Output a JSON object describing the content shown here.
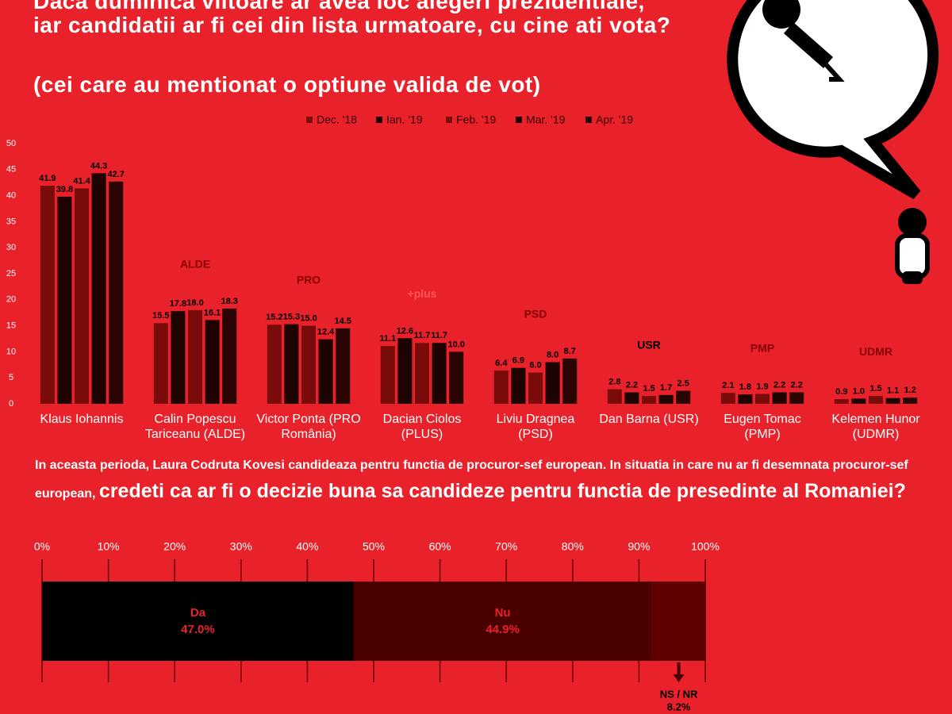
{
  "chart_data": [
    {
      "type": "bar",
      "title": [
        "Daca duminica viitoare ar avea loc alegeri prezidentiale,",
        "iar candidatii ar fi cei din lista urmatoare, cu cine ati vota?"
      ],
      "subtitle": "(cei care au mentionat o optiune valida de vot)",
      "categories": [
        "Klaus Iohannis",
        "Calin Popescu Tariceanu (ALDE)",
        "Victor Ponta (PRO România)",
        "Dacian Ciolos (PLUS)",
        "Liviu Dragnea (PSD)",
        "Dan Barna (USR)",
        "Eugen Tomac (PMP)",
        "Kelemen Hunor (UDMR)"
      ],
      "logos": [
        "ALDE",
        "PRO",
        "+plus",
        "PSD",
        "USR",
        "PMP",
        "UDMR"
      ],
      "series": [
        {
          "name": "Dec. '18",
          "color": "#7a0b0b",
          "values": [
            41.9,
            15.5,
            15.2,
            11.1,
            6.4,
            2.8,
            2.1,
            0.9
          ],
          "value_labels": [
            "41.9",
            "15.5",
            "15.2",
            "11.1",
            "6.4",
            "2.8",
            "2.1",
            "0.9"
          ]
        },
        {
          "name": "Ian. '19",
          "color": "#1e0303",
          "values": [
            39.8,
            17.8,
            15.3,
            12.6,
            6.9,
            2.2,
            1.8,
            1.0
          ],
          "value_labels": [
            "39.8",
            "17.8",
            "15.3",
            "12.6",
            "6.9",
            "2.2",
            "1.8",
            "1.0"
          ]
        },
        {
          "name": "Feb. '19",
          "color": "#7a0b0b",
          "values": [
            41.4,
            18.0,
            15.0,
            11.7,
            6.0,
            1.5,
            1.9,
            1.5
          ],
          "value_labels": [
            "41.4",
            "18.0",
            "15.0",
            "11.7",
            "6.0",
            "1.5",
            "1.9",
            "1.5"
          ]
        },
        {
          "name": "Mar. '19",
          "color": "#1e0303",
          "values": [
            44.3,
            16.1,
            12.4,
            11.7,
            8.0,
            1.7,
            2.2,
            1.1
          ],
          "value_labels": [
            "44.3",
            "16.1",
            "12.4",
            "11.7",
            "8.0",
            "1.7",
            "2.2",
            "1.1"
          ]
        },
        {
          "name": "Apr. '19",
          "color": "#2a0303",
          "values": [
            42.7,
            18.3,
            14.5,
            10.0,
            8.7,
            2.5,
            2.2,
            1.2
          ],
          "value_labels": [
            "42.7",
            "18.3",
            "14.5",
            "10.0",
            "8.7",
            "2.5",
            "2.2",
            "1.2"
          ]
        }
      ],
      "ylim": [
        0,
        50
      ],
      "yticks": [
        0,
        5,
        10,
        15,
        20,
        25,
        30,
        35,
        40,
        45,
        50
      ],
      "legend": "top"
    },
    {
      "type": "stacked-bar",
      "orientation": "horizontal",
      "subtitle": "In aceasta perioda, Laura Codruta Kovesi candideaza pentru functia de procuror-sef european. In situatia in care nu ar fi desemnata procuror-sef european,",
      "title": "credeti ca ar fi o decizie buna sa candideze pentru functia de presedinte al Romaniei?",
      "series": [
        {
          "name": "Da",
          "color": "#000000",
          "values": [
            47.0
          ],
          "value_labels": [
            "47.0%"
          ]
        },
        {
          "name": "Nu",
          "color": "#4a0000",
          "values": [
            44.9
          ],
          "value_labels": [
            "44.9%"
          ]
        },
        {
          "name": "NS / NR",
          "color": "#5e0000",
          "values": [
            8.2
          ],
          "value_labels": [
            "8.2%"
          ]
        }
      ],
      "xlim": [
        0,
        100
      ],
      "xticks": [
        {
          "value": 0,
          "label": "0%"
        },
        {
          "value": 10,
          "label": "10%"
        },
        {
          "value": 20,
          "label": "20%"
        },
        {
          "value": 30,
          "label": "30%"
        },
        {
          "value": 40,
          "label": "40%"
        },
        {
          "value": 50,
          "label": "50%"
        },
        {
          "value": 60,
          "label": "60%"
        },
        {
          "value": 70,
          "label": "70%"
        },
        {
          "value": 80,
          "label": "80%"
        },
        {
          "value": 90,
          "label": "90%"
        },
        {
          "value": 100,
          "label": "100%"
        }
      ]
    }
  ]
}
